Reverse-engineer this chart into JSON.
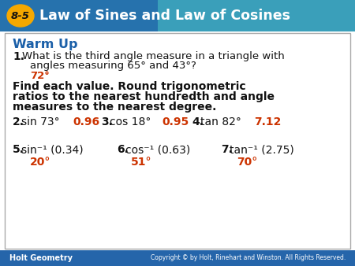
{
  "header_bg_color": "#2060a8",
  "header_gradient_right": "#4ab5c4",
  "header_badge_bg": "#f5a800",
  "header_badge_text": "8-5",
  "header_title": "Law of Sines and Law of Cosines",
  "header_text_color": "#ffffff",
  "header_badge_text_color": "#1a1a1a",
  "body_bg_color": "#ffffff",
  "body_border_color": "#aaaaaa",
  "footer_bg_color": "#2060a8",
  "footer_left": "Holt Geometry",
  "footer_right": "Copyright © by Holt, Rinehart and Winston. All Rights Reserved.",
  "footer_text_color": "#ffffff",
  "warm_up_color": "#1a5fa8",
  "answer_color": "#cc3300",
  "black_color": "#111111",
  "bold_color": "#111111",
  "warm_up_label": "Warm Up",
  "q1_answer": "72°",
  "q2_num": "2.",
  "q2_text": "sin 73°",
  "q2_answer": "0.96",
  "q3_num": "3.",
  "q3_text": "cos 18°",
  "q3_answer": "0.95",
  "q4_num": "4.",
  "q4_text": "tan 82°",
  "q4_answer": "7.12",
  "q5_num": "5.",
  "q5_text": "sin⁻¹ (0.34)",
  "q5_answer": "20°",
  "q6_num": "6.",
  "q6_text": "cos⁻¹ (0.63)",
  "q6_answer": "51°",
  "q7_num": "7.",
  "q7_text": "tan⁻¹ (2.75)",
  "q7_answer": "70°"
}
